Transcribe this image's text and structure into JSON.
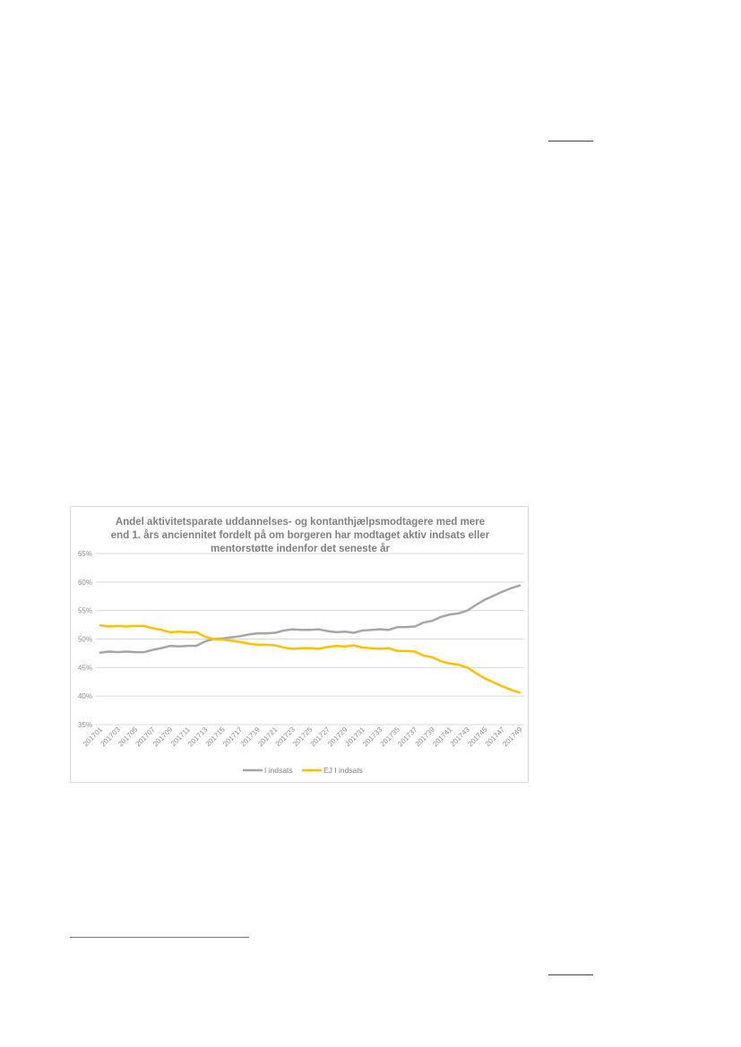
{
  "colors": {
    "indsats": "#a6a6a6",
    "ej_indsats": "#ffc000",
    "grid": "#d9d9d9",
    "text": "#7f7f7f"
  },
  "chart_data": {
    "type": "line",
    "title_lines": [
      "Andel aktivitetsparate uddannelses- og kontanthjælpsmodtagere med mere",
      "end 1. års anciennitet fordelt på om borgeren har modtaget aktiv indsats eller",
      "mentorstøtte indenfor det seneste år"
    ],
    "xlabel": "",
    "ylabel": "",
    "ylim": [
      35,
      65
    ],
    "yticks": [
      "35%",
      "40%",
      "45%",
      "50%",
      "55%",
      "60%",
      "65%"
    ],
    "grid": true,
    "legend_position": "bottom",
    "x_tick_labels": [
      "201701",
      "201703",
      "201705",
      "201707",
      "201709",
      "201711",
      "201713",
      "201715",
      "201717",
      "201719",
      "201721",
      "201723",
      "201725",
      "201727",
      "201729",
      "201731",
      "201733",
      "201735",
      "201737",
      "201739",
      "201741",
      "201743",
      "201745",
      "201747",
      "201749"
    ],
    "x": [
      "201701",
      "201702",
      "201703",
      "201704",
      "201705",
      "201706",
      "201707",
      "201708",
      "201709",
      "201710",
      "201711",
      "201712",
      "201713",
      "201714",
      "201715",
      "201716",
      "201717",
      "201718",
      "201719",
      "201720",
      "201721",
      "201722",
      "201723",
      "201724",
      "201725",
      "201726",
      "201727",
      "201728",
      "201729",
      "201730",
      "201731",
      "201732",
      "201733",
      "201734",
      "201735",
      "201736",
      "201737",
      "201738",
      "201739",
      "201740",
      "201741",
      "201742",
      "201743",
      "201744",
      "201745",
      "201746",
      "201747",
      "201748",
      "201749"
    ],
    "series": [
      {
        "name": "I indsats",
        "color": "#a6a6a6",
        "values": [
          47.6,
          47.8,
          47.7,
          47.8,
          47.7,
          47.7,
          48.1,
          48.4,
          48.8,
          48.7,
          48.8,
          48.8,
          49.6,
          50.0,
          50.1,
          50.3,
          50.5,
          50.8,
          51.0,
          51.0,
          51.1,
          51.5,
          51.7,
          51.6,
          51.6,
          51.7,
          51.4,
          51.2,
          51.3,
          51.1,
          51.5,
          51.6,
          51.7,
          51.6,
          52.1,
          52.1,
          52.2,
          52.9,
          53.2,
          53.9,
          54.3,
          54.5,
          55.0,
          56.0,
          56.9,
          57.6,
          58.3,
          58.9,
          59.4
        ]
      },
      {
        "name": "EJ I indsats",
        "color": "#ffc000",
        "values": [
          52.4,
          52.2,
          52.3,
          52.2,
          52.3,
          52.3,
          51.9,
          51.6,
          51.2,
          51.3,
          51.2,
          51.2,
          50.4,
          50.0,
          49.9,
          49.7,
          49.5,
          49.2,
          49.0,
          49.0,
          48.9,
          48.5,
          48.3,
          48.4,
          48.4,
          48.3,
          48.6,
          48.8,
          48.7,
          48.9,
          48.5,
          48.4,
          48.3,
          48.4,
          47.9,
          47.9,
          47.8,
          47.1,
          46.8,
          46.1,
          45.7,
          45.5,
          45.0,
          44.0,
          43.1,
          42.4,
          41.7,
          41.1,
          40.6
        ]
      }
    ]
  }
}
